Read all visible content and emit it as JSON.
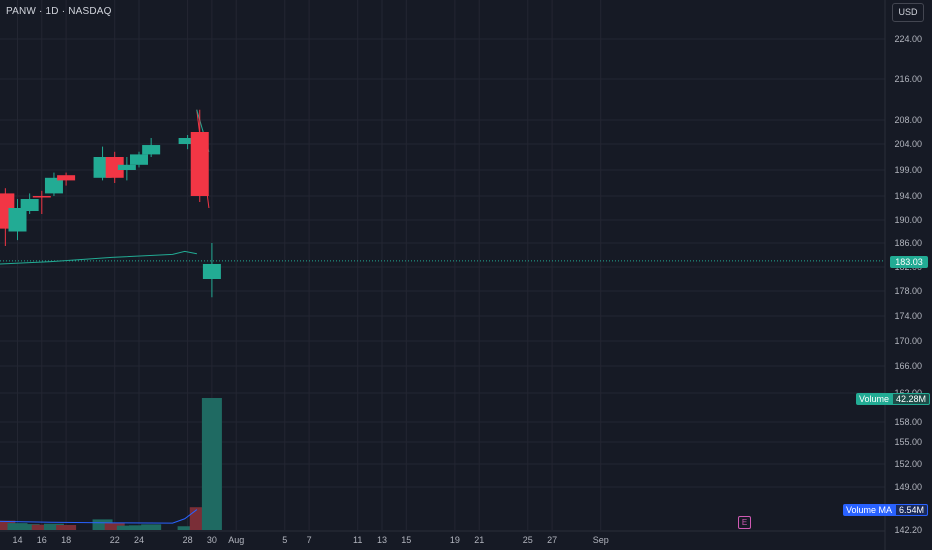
{
  "header": {
    "title": "PANW · 1D · NASDAQ"
  },
  "currency_button": "USD",
  "price_tag": "183.03",
  "volume_tag": {
    "label": "Volume",
    "value": "42.28M"
  },
  "volume_ma_tag": {
    "label": "Volume MA",
    "value": "6.54M"
  },
  "earnings_marker": "E",
  "colors": {
    "up": "#22ab94",
    "down": "#f23645",
    "ma": "#2962ff",
    "grid": "#232632",
    "bg": "#161a25"
  },
  "chart_data": {
    "type": "candlestick",
    "symbol": "PANW",
    "interval": "1D",
    "exchange": "NASDAQ",
    "ylim": [
      142.2,
      227
    ],
    "y_ticks": [
      "224.00",
      "216.00",
      "208.00",
      "204.00",
      "199.00",
      "194.00",
      "190.00",
      "186.00",
      "182.00",
      "178.00",
      "174.00",
      "170.00",
      "166.00",
      "162.00",
      "158.00",
      "155.00",
      "152.00",
      "149.00",
      "142.20"
    ],
    "x_ticks": [
      {
        "label": "14",
        "day": 0
      },
      {
        "label": "16",
        "day": 2
      },
      {
        "label": "18",
        "day": 4
      },
      {
        "label": "22",
        "day": 8
      },
      {
        "label": "24",
        "day": 10
      },
      {
        "label": "28",
        "day": 14
      },
      {
        "label": "30",
        "day": 16
      },
      {
        "label": "Aug",
        "day": 18
      },
      {
        "label": "5",
        "day": 22
      },
      {
        "label": "7",
        "day": 24
      },
      {
        "label": "11",
        "day": 28
      },
      {
        "label": "13",
        "day": 30
      },
      {
        "label": "15",
        "day": 32
      },
      {
        "label": "19",
        "day": 36
      },
      {
        "label": "21",
        "day": 38
      },
      {
        "label": "25",
        "day": 42
      },
      {
        "label": "27",
        "day": 44
      },
      {
        "label": "Sep",
        "day": 48
      }
    ],
    "candles": [
      {
        "day": -1,
        "open": 194.5,
        "high": 195.5,
        "low": 185.5,
        "close": 188.5
      },
      {
        "day": 0,
        "open": 188.0,
        "high": 193.5,
        "low": 186.5,
        "close": 192.0
      },
      {
        "day": 1,
        "open": 191.5,
        "high": 194.5,
        "low": 191.0,
        "close": 193.5
      },
      {
        "day": 2,
        "open": 194.0,
        "high": 195.0,
        "low": 191.0,
        "close": 193.8
      },
      {
        "day": 3,
        "open": 194.5,
        "high": 198.5,
        "low": 194.0,
        "close": 197.5
      },
      {
        "day": 4,
        "open": 198.0,
        "high": 198.5,
        "low": 196.0,
        "close": 197.0
      },
      {
        "day": 7,
        "open": 197.5,
        "high": 203.5,
        "low": 197.0,
        "close": 201.5
      },
      {
        "day": 8,
        "open": 201.5,
        "high": 202.5,
        "low": 196.5,
        "close": 197.5
      },
      {
        "day": 9,
        "open": 199.0,
        "high": 201.5,
        "low": 197.0,
        "close": 200.0
      },
      {
        "day": 10,
        "open": 200.0,
        "high": 202.5,
        "low": 199.5,
        "close": 202.0
      },
      {
        "day": 11,
        "open": 202.0,
        "high": 205.0,
        "low": 201.5,
        "close": 203.8
      },
      {
        "day": 14,
        "open": 204.0,
        "high": 205.5,
        "low": 203.0,
        "close": 205.0
      },
      {
        "day": 15,
        "open": 206.0,
        "high": 210.0,
        "low": 193.0,
        "close": 194.0
      },
      {
        "day": 16,
        "open": 180.0,
        "high": 186.0,
        "low": 177.0,
        "close": 182.5
      }
    ],
    "after_hours_lines": [
      {
        "color": "#f23645",
        "from": {
          "day": 15,
          "price": 210.0
        },
        "to": {
          "day": 16,
          "price": 192.0
        }
      },
      {
        "color": "#22ab94",
        "from": {
          "day": 15,
          "price": 210.0
        },
        "to": {
          "day": 16,
          "price": 202.5
        }
      }
    ],
    "ma_line": {
      "color": "#22ab94",
      "points": [
        [
          -1,
          182.5
        ],
        [
          4,
          182.9
        ],
        [
          9,
          183.6
        ],
        [
          14,
          184.1
        ],
        [
          15,
          184.6
        ],
        [
          16,
          184.2
        ]
      ]
    },
    "last_price": 183.03,
    "volume": [
      {
        "day": -1,
        "value": 3.0,
        "up": false
      },
      {
        "day": 0,
        "value": 2.2,
        "up": true
      },
      {
        "day": 1,
        "value": 1.9,
        "up": true
      },
      {
        "day": 2,
        "value": 1.7,
        "up": false
      },
      {
        "day": 3,
        "value": 2.0,
        "up": true
      },
      {
        "day": 4,
        "value": 1.6,
        "up": false
      },
      {
        "day": 7,
        "value": 3.4,
        "up": true
      },
      {
        "day": 8,
        "value": 2.2,
        "up": false
      },
      {
        "day": 9,
        "value": 1.4,
        "up": true
      },
      {
        "day": 10,
        "value": 1.5,
        "up": true
      },
      {
        "day": 11,
        "value": 1.8,
        "up": true
      },
      {
        "day": 14,
        "value": 1.2,
        "up": true
      },
      {
        "day": 15,
        "value": 7.3,
        "up": false
      },
      {
        "day": 16,
        "value": 42.28,
        "up": true
      }
    ],
    "volume_ma": {
      "value": 6.54,
      "points": [
        [
          -1,
          2.8
        ],
        [
          4,
          2.5
        ],
        [
          9,
          2.3
        ],
        [
          14,
          2.2
        ],
        [
          15,
          3.6
        ],
        [
          16,
          6.54
        ]
      ]
    },
    "volume_label": "Volume",
    "volume_ma_label": "Volume MA",
    "grid": true
  }
}
